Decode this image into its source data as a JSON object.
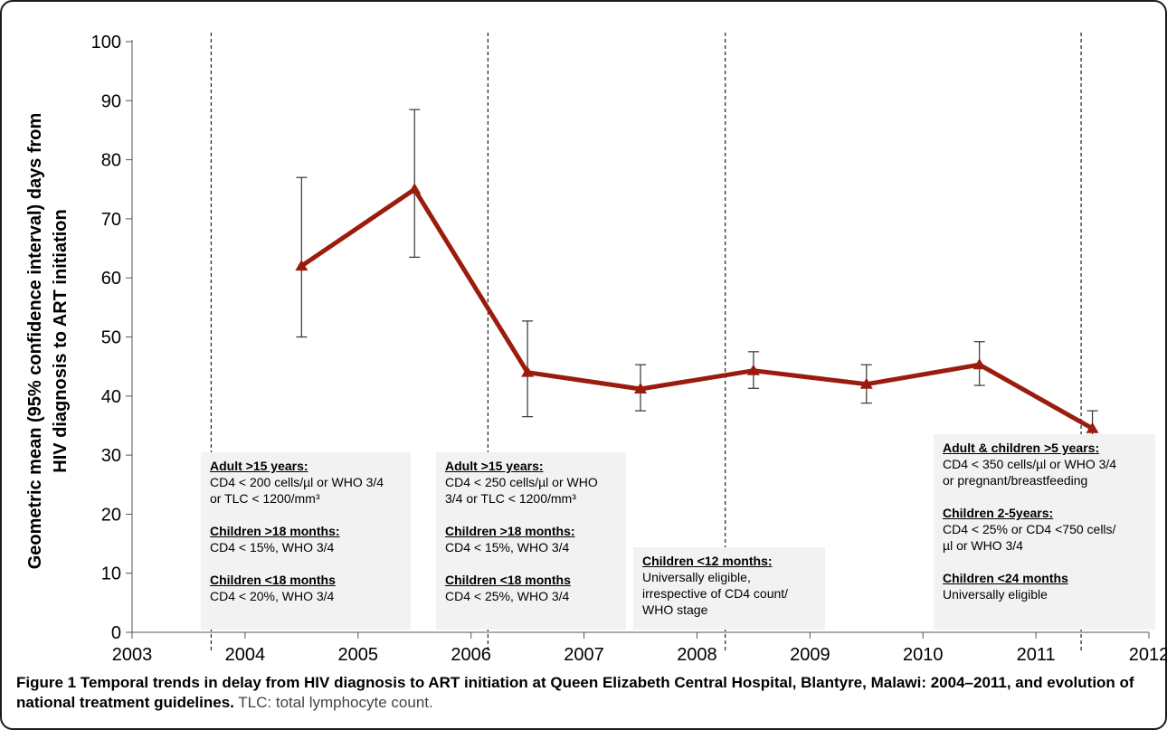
{
  "chart_data": {
    "type": "line",
    "ylabel_line1": "Geometric mean (95% confidence interval) days from",
    "ylabel_line2": "HIV diagnosis to ART initiation",
    "xlabel": "",
    "xlim": [
      2003,
      2012
    ],
    "ylim": [
      0,
      100
    ],
    "x_ticks": [
      "2003",
      "2004",
      "2005",
      "2006",
      "2007",
      "2008",
      "2009",
      "2010",
      "2011",
      "2012"
    ],
    "y_ticks": [
      "0",
      "10",
      "20",
      "30",
      "40",
      "50",
      "60",
      "70",
      "80",
      "90",
      "100"
    ],
    "grid": false,
    "marker": "triangle",
    "line_color": "#9b1c0e",
    "points": [
      {
        "x": 2004.5,
        "y": 62,
        "lower": 50,
        "upper": 77
      },
      {
        "x": 2005.5,
        "y": 75,
        "lower": 63.5,
        "upper": 88.5
      },
      {
        "x": 2006.5,
        "y": 44,
        "lower": 36.5,
        "upper": 52.7
      },
      {
        "x": 2007.5,
        "y": 41.2,
        "lower": 37.5,
        "upper": 45.3
      },
      {
        "x": 2008.5,
        "y": 44.3,
        "lower": 41.3,
        "upper": 47.5
      },
      {
        "x": 2009.5,
        "y": 42,
        "lower": 38.8,
        "upper": 45.3
      },
      {
        "x": 2010.5,
        "y": 45.3,
        "lower": 41.8,
        "upper": 49.2
      },
      {
        "x": 2011.5,
        "y": 34.5,
        "lower": 31.8,
        "upper": 37.5
      }
    ],
    "guideline_changes": [
      2003.7,
      2006.15,
      2008.25,
      2011.4
    ]
  },
  "guidelines": [
    {
      "groups": [
        {
          "heading": "Adult >15 years:",
          "lines": [
            "CD4 < 200 cells/µl or WHO 3/4",
            "or TLC < 1200/mm³"
          ]
        },
        {
          "heading": "Children >18 months:",
          "lines": [
            "CD4 < 15%, WHO 3/4"
          ]
        },
        {
          "heading": "Children <18 months",
          "lines": [
            "CD4 < 20%, WHO 3/4"
          ]
        }
      ]
    },
    {
      "groups": [
        {
          "heading": "Adult >15 years:",
          "lines": [
            "CD4 < 250 cells/µl or WHO",
            "3/4 or TLC < 1200/mm³"
          ]
        },
        {
          "heading": "Children >18 months:",
          "lines": [
            "CD4 < 15%, WHO 3/4"
          ]
        },
        {
          "heading": "Children <18 months",
          "lines": [
            "CD4 < 25%, WHO 3/4"
          ]
        }
      ]
    },
    {
      "groups": [
        {
          "heading": "Children <12 months:",
          "lines": [
            "Universally eligible,",
            "irrespective of CD4 count/",
            "WHO stage"
          ]
        }
      ]
    },
    {
      "groups": [
        {
          "heading": "Adult & children >5 years:",
          "lines": [
            "CD4 < 350 cells/µl or WHO 3/4",
            "or pregnant/breastfeeding"
          ]
        },
        {
          "heading": "Children 2-5years:",
          "lines": [
            "CD4 < 25% or CD4 <750 cells/",
            "µl or  WHO 3/4"
          ]
        },
        {
          "heading": "Children <24 months",
          "lines": [
            "Universally eligible"
          ]
        }
      ]
    }
  ],
  "caption": {
    "bold": "Figure 1 Temporal trends in delay from HIV diagnosis to ART initiation at Queen Elizabeth Central Hospital, Blantyre, Malawi: 2004–2011, and evolution of national treatment guidelines.",
    "note": "TLC: total lymphocyte count."
  }
}
